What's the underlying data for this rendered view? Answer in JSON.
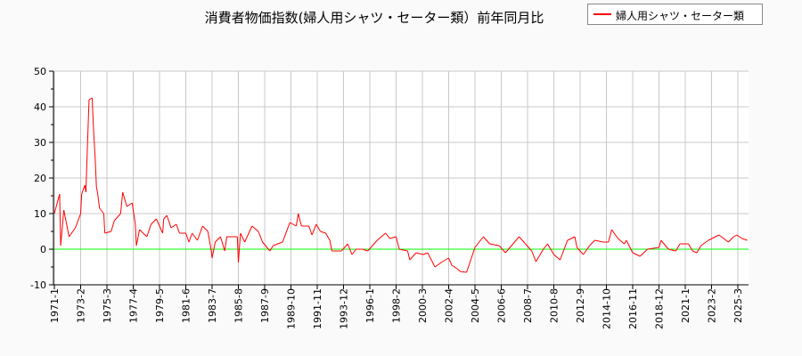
{
  "chart_data": {
    "type": "line",
    "title": "消費者物価指数(婦人用シャツ・セーター類）前年同月比",
    "xlabel": "",
    "ylabel": "",
    "ylim": [
      -10,
      50
    ],
    "yticks": [
      -10,
      0,
      10,
      20,
      30,
      40,
      50
    ],
    "xticks": [
      "1971-1",
      "1973-2",
      "1975-3",
      "1977-4",
      "1979-5",
      "1981-6",
      "1983-7",
      "1985-8",
      "1987-9",
      "1989-10",
      "1991-11",
      "1993-12",
      "1996-1",
      "1998-2",
      "2000-3",
      "2002-4",
      "2004-5",
      "2006-6",
      "2008-7",
      "2010-8",
      "2012-9",
      "2014-10",
      "2016-11",
      "2018-12",
      "2021-1",
      "2023-2",
      "2025-3"
    ],
    "grid": true,
    "legend": "top-right",
    "reference_line": {
      "y": 0,
      "color": "#00ff00"
    },
    "series": [
      {
        "name": "婦人用シャツ・セーター類",
        "color": "#ff0000",
        "points": [
          [
            "1971-1",
            10
          ],
          [
            "1971-6",
            15.5
          ],
          [
            "1971-7",
            1
          ],
          [
            "1971-10",
            11
          ],
          [
            "1972-3",
            3.5
          ],
          [
            "1972-9",
            6
          ],
          [
            "1973-2",
            10
          ],
          [
            "1973-3",
            15.5
          ],
          [
            "1973-6",
            18
          ],
          [
            "1973-7",
            16
          ],
          [
            "1973-8",
            25
          ],
          [
            "1973-10",
            42
          ],
          [
            "1974-1",
            42.5
          ],
          [
            "1974-2",
            35
          ],
          [
            "1974-4",
            24.5
          ],
          [
            "1974-5",
            17.5
          ],
          [
            "1974-6",
            16
          ],
          [
            "1974-8",
            11.5
          ],
          [
            "1974-12",
            10
          ],
          [
            "1975-1",
            4.5
          ],
          [
            "1975-7",
            5
          ],
          [
            "1975-10",
            8
          ],
          [
            "1976-4",
            10
          ],
          [
            "1976-6",
            16
          ],
          [
            "1976-10",
            12
          ],
          [
            "1977-3",
            13
          ],
          [
            "1977-6",
            7
          ],
          [
            "1977-7",
            1
          ],
          [
            "1977-10",
            5.5
          ],
          [
            "1978-5",
            3.5
          ],
          [
            "1978-9",
            7
          ],
          [
            "1979-2",
            8.5
          ],
          [
            "1979-8",
            4.5
          ],
          [
            "1979-9",
            8.5
          ],
          [
            "1979-12",
            9.5
          ],
          [
            "1980-4",
            6
          ],
          [
            "1980-9",
            7
          ],
          [
            "1980-12",
            4.5
          ],
          [
            "1981-6",
            4.5
          ],
          [
            "1981-9",
            2
          ],
          [
            "1981-12",
            4.5
          ],
          [
            "1982-5",
            2.5
          ],
          [
            "1982-10",
            6.5
          ],
          [
            "1983-3",
            5
          ],
          [
            "1983-6",
            0
          ],
          [
            "1983-7",
            -2.5
          ],
          [
            "1983-10",
            2
          ],
          [
            "1984-3",
            3.5
          ],
          [
            "1984-7",
            -0.5
          ],
          [
            "1984-9",
            3.5
          ],
          [
            "1985-2",
            3.5
          ],
          [
            "1985-7",
            3.5
          ],
          [
            "1985-8",
            -3.75
          ],
          [
            "1985-10",
            4.5
          ],
          [
            "1986-2",
            2
          ],
          [
            "1986-9",
            6.5
          ],
          [
            "1987-3",
            5
          ],
          [
            "1987-7",
            2
          ],
          [
            "1988-2",
            -0.5
          ],
          [
            "1988-5",
            1
          ],
          [
            "1989-2",
            2
          ],
          [
            "1989-9",
            7.5
          ],
          [
            "1990-3",
            6.5
          ],
          [
            "1990-5",
            10
          ],
          [
            "1990-8",
            6.5
          ],
          [
            "1991-3",
            6.5
          ],
          [
            "1991-6",
            4
          ],
          [
            "1991-10",
            7
          ],
          [
            "1992-2",
            5
          ],
          [
            "1992-7",
            4.5
          ],
          [
            "1992-11",
            2.5
          ],
          [
            "1993-1",
            -0.5
          ],
          [
            "1993-10",
            -0.5
          ],
          [
            "1994-4",
            1.5
          ],
          [
            "1994-8",
            -1.5
          ],
          [
            "1994-12",
            0
          ],
          [
            "1995-6",
            0
          ],
          [
            "1995-11",
            -0.5
          ],
          [
            "1996-8",
            2.5
          ],
          [
            "1997-4",
            4.5
          ],
          [
            "1997-8",
            3
          ],
          [
            "1998-2",
            3.5
          ],
          [
            "1998-5",
            0
          ],
          [
            "1999-1",
            -0.5
          ],
          [
            "1999-3",
            -3
          ],
          [
            "1999-9",
            -1
          ],
          [
            "2000-4",
            -1.5
          ],
          [
            "2000-8",
            -1
          ],
          [
            "2001-3",
            -5
          ],
          [
            "2001-10",
            -3.5
          ],
          [
            "2002-4",
            -2.5
          ],
          [
            "2002-7",
            -4.5
          ],
          [
            "2002-12",
            -5.5
          ],
          [
            "2003-3",
            -6.25
          ],
          [
            "2003-9",
            -6.5
          ],
          [
            "2004-1",
            -3
          ],
          [
            "2004-5",
            0.5
          ],
          [
            "2005-1",
            3.5
          ],
          [
            "2005-7",
            1.5
          ],
          [
            "2006-4",
            1
          ],
          [
            "2006-10",
            -1
          ],
          [
            "2007-11",
            3.5
          ],
          [
            "2008-5",
            1.5
          ],
          [
            "2008-11",
            -0.5
          ],
          [
            "2009-3",
            -3.5
          ],
          [
            "2009-10",
            0
          ],
          [
            "2010-2",
            1.5
          ],
          [
            "2010-8",
            -1.5
          ],
          [
            "2011-2",
            -3
          ],
          [
            "2011-9",
            2.5
          ],
          [
            "2012-4",
            3.5
          ],
          [
            "2012-6",
            0.5
          ],
          [
            "2012-12",
            -1.5
          ],
          [
            "2013-6",
            1
          ],
          [
            "2013-11",
            2.5
          ],
          [
            "2014-7",
            2
          ],
          [
            "2014-12",
            2
          ],
          [
            "2015-3",
            5.5
          ],
          [
            "2015-9",
            3
          ],
          [
            "2016-3",
            1.5
          ],
          [
            "2016-5",
            2.5
          ],
          [
            "2016-11",
            -1
          ],
          [
            "2017-6",
            -2
          ],
          [
            "2018-1",
            0
          ],
          [
            "2018-12",
            0.5
          ],
          [
            "2019-2",
            2.5
          ],
          [
            "2019-9",
            0
          ],
          [
            "2020-4",
            -0.5
          ],
          [
            "2020-8",
            1.5
          ],
          [
            "2021-4",
            1.5
          ],
          [
            "2021-8",
            -0.5
          ],
          [
            "2021-12",
            -1
          ],
          [
            "2022-4",
            1
          ],
          [
            "2022-11",
            2.5
          ],
          [
            "2023-9",
            4
          ],
          [
            "2024-6",
            2
          ],
          [
            "2024-11",
            3.5
          ],
          [
            "2025-2",
            4
          ],
          [
            "2025-7",
            3
          ],
          [
            "2025-12",
            2.5
          ]
        ]
      }
    ]
  }
}
